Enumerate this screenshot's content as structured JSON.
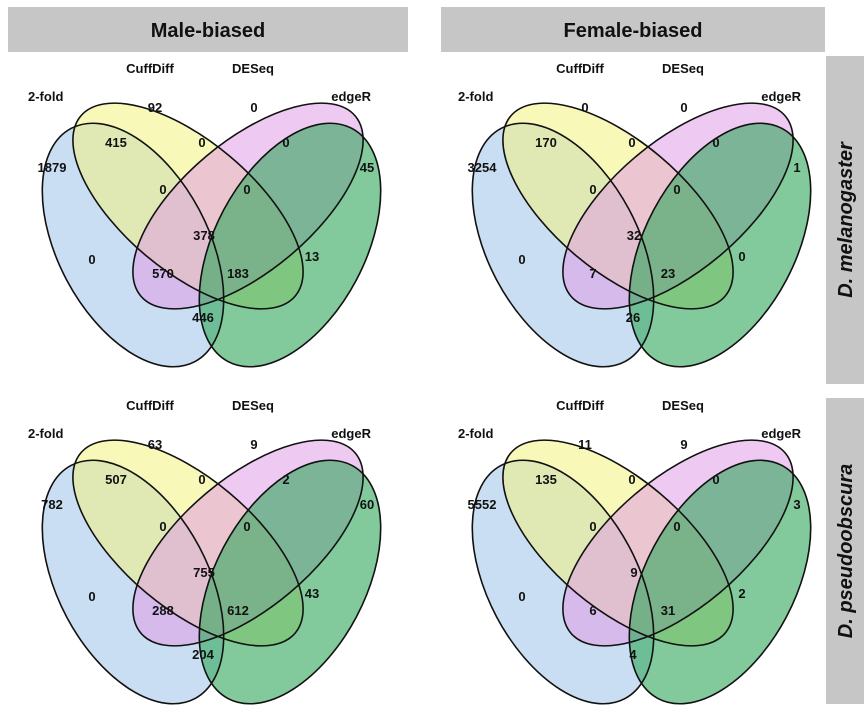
{
  "headers": {
    "col1": "Male-biased",
    "col2": "Female-biased"
  },
  "side_labels": {
    "row1": "D. melanogaster",
    "row2": "D. pseudoobscura"
  },
  "set_labels": {
    "a": "2-fold",
    "b": "CuffDiff",
    "c": "DESeq",
    "d": "edgeR"
  },
  "colors": {
    "header_bg": "#c6c6c6",
    "set_a": "#9fc3ea",
    "set_b": "#f2f280",
    "set_c": "#e09ce6",
    "set_d": "#2fa65a"
  },
  "venns": [
    {
      "panel": "male-melanogaster",
      "counts": {
        "a_only": "1879",
        "b_only": "92",
        "c_only": "0",
        "d_only": "45",
        "ab": "415",
        "bc": "0",
        "cd": "0",
        "ac": "0",
        "bd": "13",
        "ad": "446",
        "abc": "0",
        "bcd": "0",
        "acd": "570",
        "abd": "183",
        "abcd": "378"
      }
    },
    {
      "panel": "female-melanogaster",
      "counts": {
        "a_only": "3254",
        "b_only": "0",
        "c_only": "0",
        "d_only": "1",
        "ab": "170",
        "bc": "0",
        "cd": "0",
        "ac": "0",
        "bd": "0",
        "ad": "26",
        "abc": "0",
        "bcd": "0",
        "acd": "7",
        "abd": "23",
        "abcd": "32"
      }
    },
    {
      "panel": "male-pseudoobscura",
      "counts": {
        "a_only": "782",
        "b_only": "63",
        "c_only": "9",
        "d_only": "60",
        "ab": "507",
        "bc": "0",
        "cd": "2",
        "ac": "0",
        "bd": "43",
        "ad": "204",
        "abc": "0",
        "bcd": "0",
        "acd": "288",
        "abd": "612",
        "abcd": "755"
      }
    },
    {
      "panel": "female-pseudoobscura",
      "counts": {
        "a_only": "5552",
        "b_only": "11",
        "c_only": "9",
        "d_only": "3",
        "ab": "135",
        "bc": "0",
        "cd": "0",
        "ac": "0",
        "bd": "2",
        "ad": "4",
        "abc": "0",
        "bcd": "0",
        "acd": "6",
        "abd": "31",
        "abcd": "9"
      }
    }
  ]
}
